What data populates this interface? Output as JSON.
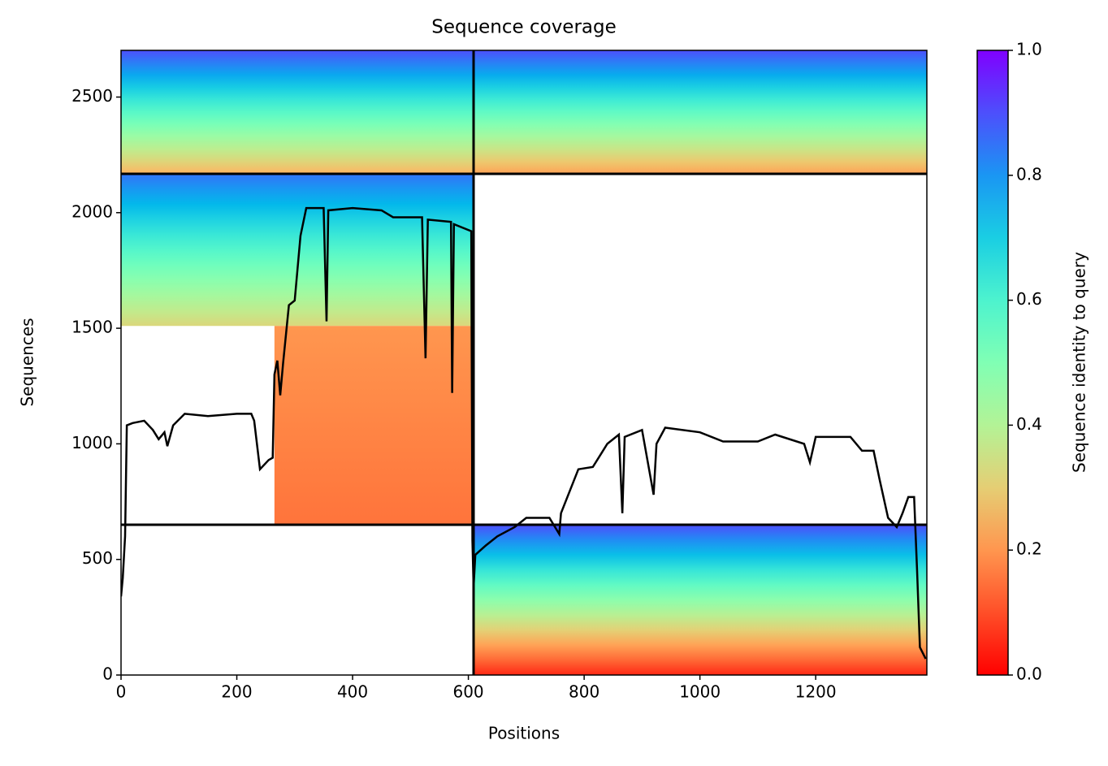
{
  "chart_data": {
    "type": "line",
    "title": "Sequence coverage",
    "xlabel": "Positions",
    "ylabel": "Sequences",
    "x": [
      0,
      3,
      7,
      10,
      20,
      40,
      55,
      65,
      75,
      80,
      90,
      110,
      150,
      200,
      225,
      230,
      240,
      255,
      262,
      265,
      270,
      275,
      280,
      290,
      300,
      310,
      320,
      350,
      355,
      358,
      400,
      450,
      470,
      520,
      526,
      530,
      570,
      572,
      575,
      605,
      607,
      609,
      612,
      630,
      650,
      680,
      700,
      740,
      757,
      760,
      790,
      815,
      830,
      840,
      860,
      866,
      870,
      900,
      920,
      925,
      940,
      1000,
      1040,
      1100,
      1130,
      1180,
      1190,
      1200,
      1260,
      1280,
      1300,
      1310,
      1325,
      1340,
      1350,
      1360,
      1370,
      1375,
      1380,
      1390
    ],
    "values": [
      340,
      420,
      600,
      1080,
      1090,
      1100,
      1060,
      1020,
      1050,
      990,
      1080,
      1130,
      1120,
      1130,
      1130,
      1100,
      890,
      930,
      940,
      1300,
      1360,
      1210,
      1350,
      1600,
      1620,
      1900,
      2020,
      2020,
      1530,
      2010,
      2020,
      2010,
      1980,
      1980,
      1370,
      1970,
      1960,
      1220,
      1950,
      1920,
      580,
      380,
      520,
      560,
      600,
      640,
      680,
      680,
      610,
      700,
      890,
      900,
      960,
      1000,
      1040,
      700,
      1030,
      1060,
      780,
      1000,
      1070,
      1050,
      1010,
      1010,
      1040,
      1000,
      920,
      1030,
      1030,
      970,
      970,
      850,
      680,
      640,
      700,
      770,
      770,
      460,
      120,
      70
    ],
    "color": "#000000",
    "xlim": [
      0,
      1392
    ],
    "ylim": [
      0,
      2702
    ],
    "xticks": [
      0,
      200,
      400,
      600,
      800,
      1000,
      1200
    ],
    "yticks": [
      0,
      500,
      1000,
      1500,
      2000,
      2500
    ],
    "blocks": [
      {
        "x": [
          0,
          609
        ],
        "y": [
          2168,
          2702
        ],
        "identity": [
          0.25,
          0.9
        ]
      },
      {
        "x": [
          609,
          1392
        ],
        "y": [
          2168,
          2702
        ],
        "identity": [
          0.22,
          0.9
        ]
      },
      {
        "x": [
          0,
          609
        ],
        "y": [
          1510,
          2168
        ],
        "identity": [
          0.32,
          0.85
        ]
      },
      {
        "x": [
          265,
          609
        ],
        "y": [
          650,
          1510
        ],
        "identity": [
          0.15,
          0.2
        ]
      },
      {
        "x": [
          609,
          1392
        ],
        "y": [
          0,
          650
        ],
        "identity": [
          0.05,
          0.9
        ]
      }
    ],
    "boundaries": {
      "x": [
        609
      ],
      "y": [
        650,
        2168
      ]
    },
    "colorbar": {
      "label": "Sequence identity to query",
      "lim": [
        0,
        1
      ],
      "ticks": [
        {
          "value": 0,
          "label": "0.0"
        },
        0.2,
        0.4,
        0.6,
        0.8,
        {
          "value": 1,
          "label": "1.0"
        }
      ]
    }
  }
}
